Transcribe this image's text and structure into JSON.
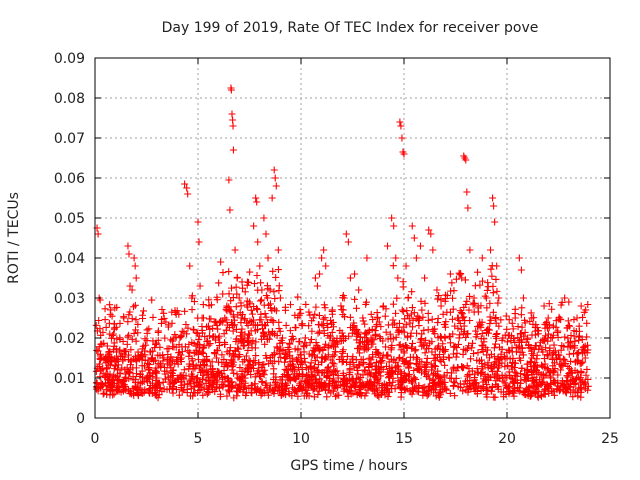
{
  "chart_data": {
    "type": "scatter",
    "title": "Day 199 of 2019, Rate Of TEC Index for receiver pove",
    "xlabel": "GPS time / hours",
    "ylabel": "ROTI / TECUs",
    "xlim": [
      0,
      25
    ],
    "ylim": [
      0,
      0.09
    ],
    "xticks": [
      "0",
      "5",
      "10",
      "15",
      "20",
      "25"
    ],
    "yticks": [
      "0",
      "0.01",
      "0.02",
      "0.03",
      "0.04",
      "0.05",
      "0.06",
      "0.07",
      "0.08",
      "0.09"
    ],
    "grid": true,
    "marker": "plus",
    "color": "#ff0000",
    "series": [
      {
        "points": [
          [
            0.1,
            0.0475
          ],
          [
            0.15,
            0.046
          ],
          [
            0.2,
            0.03
          ],
          [
            0.25,
            0.0295
          ],
          [
            0.3,
            0.012
          ],
          [
            0.35,
            0.008
          ],
          [
            0.4,
            0.006
          ],
          [
            0.5,
            0.015
          ],
          [
            0.6,
            0.018
          ],
          [
            0.7,
            0.01
          ],
          [
            0.8,
            0.014
          ],
          [
            0.9,
            0.021
          ],
          [
            1.0,
            0.013
          ],
          [
            1.1,
            0.012
          ],
          [
            1.2,
            0.017
          ],
          [
            1.3,
            0.016
          ],
          [
            1.4,
            0.025
          ],
          [
            1.5,
            0.011
          ],
          [
            1.6,
            0.043
          ],
          [
            1.65,
            0.041
          ],
          [
            1.7,
            0.033
          ],
          [
            1.8,
            0.032
          ],
          [
            1.9,
            0.04
          ],
          [
            1.95,
            0.038
          ],
          [
            2.0,
            0.035
          ],
          [
            2.1,
            0.015
          ],
          [
            2.2,
            0.011
          ],
          [
            2.3,
            0.009
          ],
          [
            2.4,
            0.013
          ],
          [
            2.5,
            0.01
          ],
          [
            2.6,
            0.012
          ],
          [
            2.8,
            0.011
          ],
          [
            3.0,
            0.01
          ],
          [
            3.2,
            0.013
          ],
          [
            3.4,
            0.011
          ],
          [
            3.6,
            0.009
          ],
          [
            3.8,
            0.012
          ],
          [
            4.0,
            0.01
          ],
          [
            4.2,
            0.015
          ],
          [
            4.35,
            0.0585
          ],
          [
            4.45,
            0.0575
          ],
          [
            4.5,
            0.056
          ],
          [
            4.6,
            0.038
          ],
          [
            4.7,
            0.03
          ],
          [
            4.8,
            0.022
          ],
          [
            4.9,
            0.018
          ],
          [
            5.0,
            0.049
          ],
          [
            5.05,
            0.044
          ],
          [
            5.1,
            0.033
          ],
          [
            5.2,
            0.025
          ],
          [
            5.3,
            0.018
          ],
          [
            5.4,
            0.012
          ],
          [
            5.5,
            0.011
          ],
          [
            5.6,
            0.013
          ],
          [
            5.8,
            0.01
          ],
          [
            5.9,
            0.015
          ],
          [
            6.0,
            0.02
          ],
          [
            6.1,
            0.039
          ],
          [
            6.2,
            0.031
          ],
          [
            6.3,
            0.025
          ],
          [
            6.4,
            0.028
          ],
          [
            6.5,
            0.0595
          ],
          [
            6.55,
            0.052
          ],
          [
            6.6,
            0.0825
          ],
          [
            6.62,
            0.082
          ],
          [
            6.65,
            0.076
          ],
          [
            6.68,
            0.0745
          ],
          [
            6.7,
            0.073
          ],
          [
            6.72,
            0.067
          ],
          [
            6.8,
            0.042
          ],
          [
            6.9,
            0.035
          ],
          [
            7.0,
            0.03
          ],
          [
            7.1,
            0.025
          ],
          [
            7.2,
            0.018
          ],
          [
            7.3,
            0.012
          ],
          [
            7.4,
            0.034
          ],
          [
            7.5,
            0.029
          ],
          [
            7.6,
            0.024
          ],
          [
            7.7,
            0.048
          ],
          [
            7.8,
            0.055
          ],
          [
            7.85,
            0.054
          ],
          [
            7.9,
            0.044
          ],
          [
            8.0,
            0.038
          ],
          [
            8.1,
            0.032
          ],
          [
            8.2,
            0.05
          ],
          [
            8.3,
            0.046
          ],
          [
            8.4,
            0.04
          ],
          [
            8.5,
            0.032
          ],
          [
            8.6,
            0.055
          ],
          [
            8.7,
            0.062
          ],
          [
            8.75,
            0.06
          ],
          [
            8.8,
            0.058
          ],
          [
            8.9,
            0.042
          ],
          [
            9.0,
            0.03
          ],
          [
            9.1,
            0.02
          ],
          [
            9.2,
            0.015
          ],
          [
            9.3,
            0.012
          ],
          [
            9.4,
            0.01
          ],
          [
            9.6,
            0.013
          ],
          [
            9.8,
            0.011
          ],
          [
            10.0,
            0.009
          ],
          [
            10.2,
            0.014
          ],
          [
            10.4,
            0.016
          ],
          [
            10.6,
            0.025
          ],
          [
            10.7,
            0.035
          ],
          [
            10.8,
            0.033
          ],
          [
            10.9,
            0.036
          ],
          [
            11.0,
            0.04
          ],
          [
            11.1,
            0.042
          ],
          [
            11.2,
            0.038
          ],
          [
            11.4,
            0.02
          ],
          [
            11.6,
            0.012
          ],
          [
            11.8,
            0.01
          ],
          [
            12.0,
            0.014
          ],
          [
            12.1,
            0.03
          ],
          [
            12.2,
            0.046
          ],
          [
            12.3,
            0.044
          ],
          [
            12.4,
            0.035
          ],
          [
            12.6,
            0.036
          ],
          [
            12.8,
            0.032
          ],
          [
            13.0,
            0.025
          ],
          [
            13.2,
            0.04
          ],
          [
            13.4,
            0.02
          ],
          [
            13.6,
            0.013
          ],
          [
            13.8,
            0.024
          ],
          [
            14.0,
            0.028
          ],
          [
            14.2,
            0.043
          ],
          [
            14.4,
            0.05
          ],
          [
            14.5,
            0.048
          ],
          [
            14.6,
            0.04
          ],
          [
            14.7,
            0.035
          ],
          [
            14.8,
            0.074
          ],
          [
            14.85,
            0.073
          ],
          [
            14.9,
            0.07
          ],
          [
            14.95,
            0.0665
          ],
          [
            15.0,
            0.066
          ],
          [
            15.1,
            0.038
          ],
          [
            15.2,
            0.03
          ],
          [
            15.4,
            0.048
          ],
          [
            15.5,
            0.045
          ],
          [
            15.6,
            0.04
          ],
          [
            15.8,
            0.043
          ],
          [
            16.0,
            0.035
          ],
          [
            16.2,
            0.047
          ],
          [
            16.3,
            0.046
          ],
          [
            16.4,
            0.042
          ],
          [
            16.6,
            0.032
          ],
          [
            16.8,
            0.028
          ],
          [
            17.0,
            0.02
          ],
          [
            17.2,
            0.015
          ],
          [
            17.4,
            0.016
          ],
          [
            17.6,
            0.025
          ],
          [
            17.8,
            0.035
          ],
          [
            17.9,
            0.0655
          ],
          [
            17.95,
            0.065
          ],
          [
            18.0,
            0.0645
          ],
          [
            18.05,
            0.0565
          ],
          [
            18.1,
            0.0525
          ],
          [
            18.2,
            0.042
          ],
          [
            18.4,
            0.03
          ],
          [
            18.6,
            0.028
          ],
          [
            18.8,
            0.04
          ],
          [
            19.0,
            0.03
          ],
          [
            19.2,
            0.042
          ],
          [
            19.3,
            0.055
          ],
          [
            19.35,
            0.053
          ],
          [
            19.4,
            0.049
          ],
          [
            19.5,
            0.038
          ],
          [
            19.6,
            0.03
          ],
          [
            19.8,
            0.02
          ],
          [
            20.0,
            0.015
          ],
          [
            20.2,
            0.01
          ],
          [
            20.4,
            0.025
          ],
          [
            20.6,
            0.04
          ],
          [
            20.7,
            0.037
          ],
          [
            20.8,
            0.03
          ],
          [
            21.0,
            0.02
          ],
          [
            21.2,
            0.015
          ],
          [
            21.4,
            0.012
          ],
          [
            21.6,
            0.018
          ],
          [
            21.8,
            0.028
          ],
          [
            22.0,
            0.025
          ],
          [
            22.2,
            0.02
          ],
          [
            22.4,
            0.015
          ],
          [
            22.6,
            0.012
          ],
          [
            22.8,
            0.03
          ],
          [
            23.0,
            0.029
          ],
          [
            23.2,
            0.018
          ],
          [
            23.4,
            0.025
          ],
          [
            23.6,
            0.028
          ],
          [
            23.8,
            0.015
          ]
        ],
        "background": {
          "x_range": [
            0.05,
            23.95
          ],
          "y_band_low": [
            0.005,
            0.008
          ],
          "y_band_high": [
            0.018,
            0.032
          ],
          "count": 2600
        }
      }
    ]
  }
}
